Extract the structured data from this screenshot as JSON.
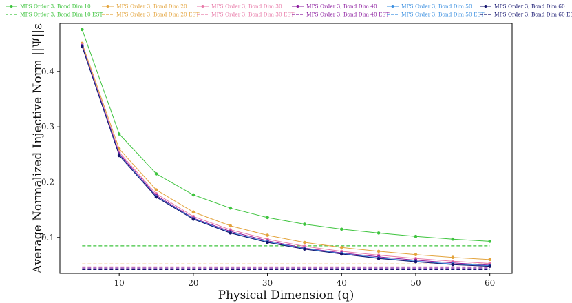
{
  "chart_data": {
    "type": "line",
    "title": "",
    "xlabel": "Physical Dimension (q)",
    "ylabel": "Average Normalized Injective Norm ||Ψ||ε",
    "xlim": [
      2,
      63
    ],
    "ylim": [
      0.035,
      0.487
    ],
    "xticks": [
      10,
      20,
      30,
      40,
      50,
      60
    ],
    "xtick_labels": [
      "10",
      "20",
      "30",
      "40",
      "50",
      "60"
    ],
    "yticks": [
      0.1,
      0.2,
      0.3,
      0.4
    ],
    "ytick_labels": [
      "0.1",
      "0.2",
      "0.3",
      "0.4"
    ],
    "grid": false,
    "legend_position": "top (above plot, 2 rows x 6 columns)",
    "x": [
      5,
      10,
      15,
      20,
      25,
      30,
      35,
      40,
      45,
      50,
      55,
      60
    ],
    "series": [
      {
        "name": "MPS Order 3, Bond Dim 10",
        "color": "#3ec43e",
        "style": "solid-marker",
        "values": [
          0.476,
          0.287,
          0.215,
          0.177,
          0.153,
          0.136,
          0.124,
          0.115,
          0.108,
          0.102,
          0.097,
          0.093
        ]
      },
      {
        "name": "MPS Order 3, Bond Dim 20",
        "color": "#e3a33b",
        "style": "solid-marker",
        "values": [
          0.451,
          0.26,
          0.186,
          0.146,
          0.121,
          0.104,
          0.091,
          0.082,
          0.075,
          0.069,
          0.064,
          0.06
        ]
      },
      {
        "name": "MPS Order 3, Bond Dim 30",
        "color": "#e87aa8",
        "style": "solid-marker",
        "values": [
          0.448,
          0.254,
          0.179,
          0.138,
          0.114,
          0.097,
          0.084,
          0.075,
          0.068,
          0.062,
          0.057,
          0.053
        ]
      },
      {
        "name": "MPS Order 3, Bond Dim 40",
        "color": "#8b1a9e",
        "style": "solid-marker",
        "values": [
          0.447,
          0.251,
          0.176,
          0.135,
          0.111,
          0.094,
          0.081,
          0.072,
          0.065,
          0.059,
          0.054,
          0.05
        ]
      },
      {
        "name": "MPS Order 3, Bond Dim 50",
        "color": "#3a8fe0",
        "style": "solid-marker",
        "values": [
          0.446,
          0.249,
          0.174,
          0.134,
          0.109,
          0.092,
          0.08,
          0.071,
          0.063,
          0.057,
          0.052,
          0.049
        ]
      },
      {
        "name": "MPS Order 3, Bond Dim 60",
        "color": "#14146e",
        "style": "solid-marker",
        "values": [
          0.445,
          0.248,
          0.173,
          0.133,
          0.108,
          0.091,
          0.079,
          0.07,
          0.062,
          0.056,
          0.051,
          0.048
        ]
      },
      {
        "name": "MPS Order 3, Bond Dim 10 EST",
        "color": "#3ec43e",
        "style": "dashed",
        "level": 0.085
      },
      {
        "name": "MPS Order 3, Bond Dim 20 EST",
        "color": "#e3a33b",
        "style": "dashed",
        "level": 0.052
      },
      {
        "name": "MPS Order 3, Bond Dim 30 EST",
        "color": "#e87aa8",
        "style": "dashed",
        "level": 0.047
      },
      {
        "name": "MPS Order 3, Bond Dim 40 EST",
        "color": "#8b1a9e",
        "style": "dashed",
        "level": 0.045
      },
      {
        "name": "MPS Order 3, Bond Dim 50 EST",
        "color": "#3a8fe0",
        "style": "dashed",
        "level": 0.043
      },
      {
        "name": "MPS Order 3, Bond Dim 60 EST",
        "color": "#14146e",
        "style": "dashed",
        "level": 0.042
      }
    ]
  }
}
